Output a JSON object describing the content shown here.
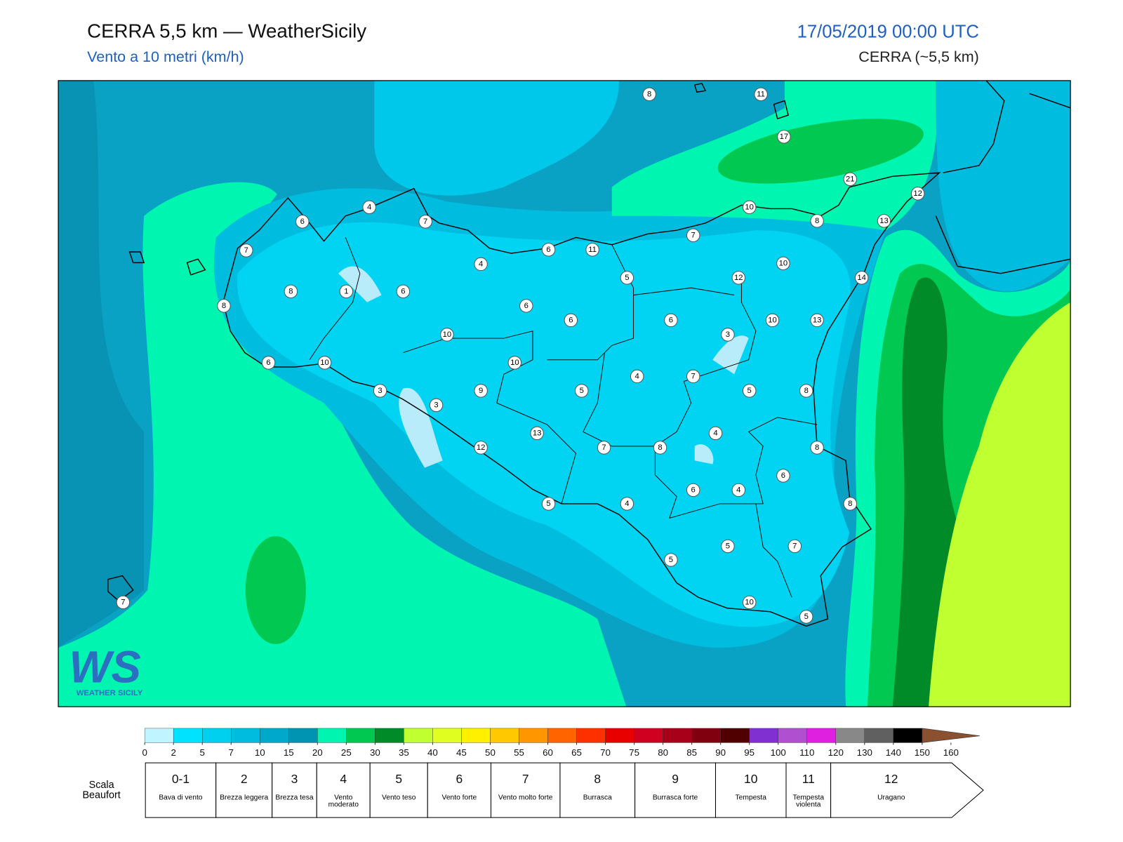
{
  "header": {
    "title": "CERRA 5,5 km — WeatherSicily",
    "subtitle": "Vento a 10 metri (km/h)",
    "datetime": "17/05/2019 00:00 UTC",
    "model": "CERRA (~5,5 km)"
  },
  "map": {
    "stations": [
      8,
      11,
      17,
      21,
      12,
      10,
      8,
      13,
      4,
      7,
      6,
      7,
      7,
      6,
      11,
      4,
      5,
      12,
      10,
      14,
      8,
      1,
      6,
      8,
      6,
      6,
      6,
      10,
      13,
      3,
      10,
      10,
      6,
      10,
      4,
      7,
      3,
      9,
      5,
      5,
      8,
      3,
      13,
      4,
      12,
      7,
      8,
      8,
      6,
      6,
      4,
      5,
      4,
      8,
      5,
      7,
      5,
      10,
      5,
      7
    ]
  },
  "colorbar": {
    "ticks": [
      0,
      2,
      5,
      7,
      10,
      15,
      20,
      25,
      30,
      35,
      40,
      45,
      50,
      55,
      60,
      65,
      70,
      75,
      80,
      85,
      90,
      95,
      100,
      110,
      120,
      130,
      140,
      150,
      160
    ],
    "colors": [
      "#c0f4ff",
      "#00e2ff",
      "#00d0f0",
      "#00bde0",
      "#00a8cc",
      "#0094b2",
      "#00f5b0",
      "#00c850",
      "#008a28",
      "#c0ff30",
      "#e0ff20",
      "#fff000",
      "#ffc800",
      "#ff9600",
      "#ff6400",
      "#ff3000",
      "#e80000",
      "#d00020",
      "#a80018",
      "#800010",
      "#500000",
      "#8030d0",
      "#b050d0",
      "#e020e0",
      "#888888",
      "#606060",
      "#000000",
      "#8a5030",
      "#d08a50"
    ]
  },
  "beaufort": {
    "title": "Scala Beaufort",
    "levels": [
      {
        "number": "0-1",
        "label": "Bava di vento"
      },
      {
        "number": 2,
        "label": "Brezza leggera"
      },
      {
        "number": 3,
        "label": "Brezza tesa"
      },
      {
        "number": 4,
        "label": "Vento moderato"
      },
      {
        "number": 5,
        "label": "Vento teso"
      },
      {
        "number": 6,
        "label": "Vento forte"
      },
      {
        "number": 7,
        "label": "Vento molto forte"
      },
      {
        "number": 8,
        "label": "Burrasca"
      },
      {
        "number": 9,
        "label": "Burrasca forte"
      },
      {
        "number": 10,
        "label": "Tempesta"
      },
      {
        "number": 11,
        "label": "Tempesta violenta"
      },
      {
        "number": 12,
        "label": "Uragano"
      }
    ]
  },
  "logo": {
    "mark": "WS",
    "text": "WEATHER SICILY"
  }
}
